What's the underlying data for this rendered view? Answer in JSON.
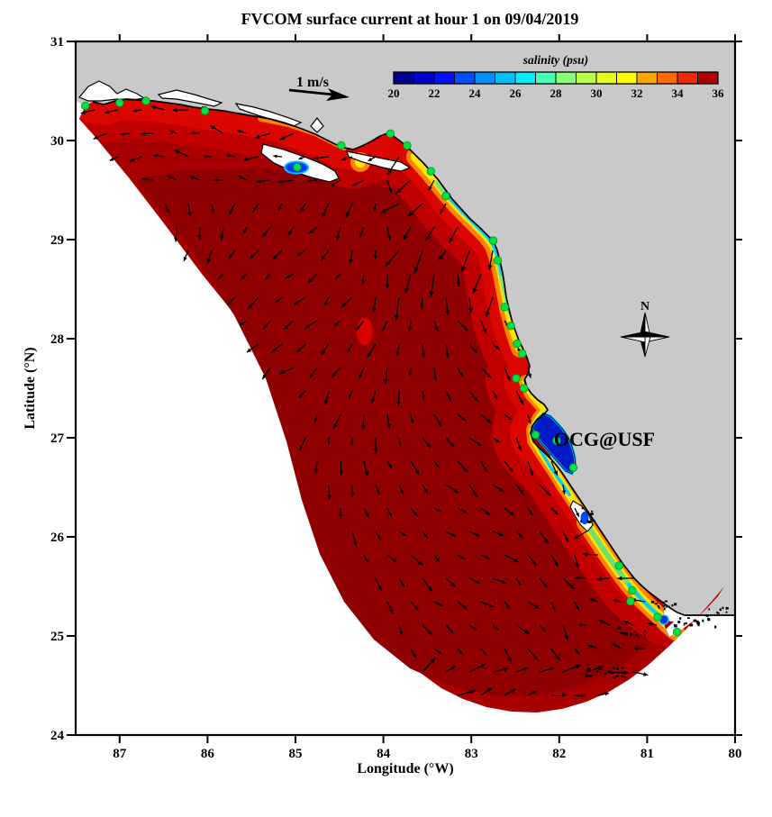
{
  "title": "FVCOM surface current at hour 1 on 09/04/2019",
  "axes": {
    "x_label": "Longitude (°W)",
    "y_label": "Latitude (°N)",
    "x_ticks": [
      87,
      86,
      85,
      84,
      83,
      82,
      81,
      80
    ],
    "y_ticks": [
      31,
      30,
      29,
      28,
      27,
      26,
      25,
      24
    ],
    "x_range_deg_w": [
      87.5,
      80
    ],
    "y_range_deg_n": [
      24,
      31
    ]
  },
  "colorbar": {
    "title": "salinity (psu)",
    "tick_labels": [
      "20",
      "22",
      "24",
      "26",
      "28",
      "30",
      "32",
      "34",
      "36"
    ],
    "range": [
      20,
      36
    ],
    "segments": 16,
    "colors": [
      "#000090",
      "#0000d0",
      "#0010ff",
      "#0050ff",
      "#0090ff",
      "#00c0ff",
      "#00ecff",
      "#48ffb8",
      "#88ff78",
      "#b8ff48",
      "#e4ff1c",
      "#ffff00",
      "#ffa500",
      "#ff6a00",
      "#f02800",
      "#b00000"
    ]
  },
  "scale_arrow": {
    "label": "1 m/s",
    "value_m_per_s": 1
  },
  "compass": {
    "label": "N"
  },
  "watermark": {
    "text": "OCG@USF",
    "color": "#ff0000"
  },
  "map": {
    "land_color": "#c9c9c9",
    "outside_domain_color": "#ffffff",
    "station_color": "#00e040",
    "vector_color": "#000000",
    "shelf_base_color": "#a80000",
    "shelf_dark_color": "#900000",
    "coastal_band_color": "#c00000",
    "coastal_band2_color": "#dc0600"
  },
  "chart_data": {
    "type": "map",
    "map_type": "surface current vector field over salinity contours",
    "title": "FVCOM surface current at hour 1 on 09/04/2019",
    "model": "FVCOM",
    "date": "09/04/2019",
    "forecast_hour": 1,
    "variable": "salinity (psu)",
    "colorbar_range": [
      20,
      36
    ],
    "colorbar_tick_values": [
      20,
      22,
      24,
      26,
      28,
      30,
      32,
      34,
      36
    ],
    "x_axis": {
      "label": "Longitude (°W)",
      "ticks": [
        87,
        86,
        85,
        84,
        83,
        82,
        81,
        80
      ],
      "range": [
        87.5,
        80
      ]
    },
    "y_axis": {
      "label": "Latitude (°N)",
      "ticks": [
        31,
        30,
        29,
        28,
        27,
        26,
        25,
        24
      ],
      "range": [
        24,
        31
      ]
    },
    "reference_vector_m_per_s": 1,
    "stations_lonlat": [
      [
        87.39,
        30.35
      ],
      [
        87.0,
        30.38
      ],
      [
        86.7,
        30.4
      ],
      [
        86.03,
        30.3
      ],
      [
        84.98,
        29.73
      ],
      [
        84.48,
        29.95
      ],
      [
        83.92,
        30.07
      ],
      [
        83.73,
        29.95
      ],
      [
        83.46,
        29.69
      ],
      [
        83.29,
        29.44
      ],
      [
        82.75,
        28.99
      ],
      [
        82.7,
        28.79
      ],
      [
        82.62,
        28.32
      ],
      [
        82.55,
        28.13
      ],
      [
        82.48,
        27.95
      ],
      [
        82.42,
        27.85
      ],
      [
        82.49,
        27.6
      ],
      [
        82.4,
        27.5
      ],
      [
        82.27,
        27.03
      ],
      [
        82.03,
        26.97
      ],
      [
        81.84,
        26.7
      ],
      [
        81.32,
        25.71
      ],
      [
        81.17,
        25.46
      ],
      [
        81.19,
        25.35
      ],
      [
        80.88,
        25.19
      ],
      [
        80.66,
        25.04
      ]
    ],
    "vector_field": {
      "grid_spacing_px": 26,
      "arrow_color": "#000000",
      "regions": [
        {
          "name": "panhandle",
          "angle_deg": 185
        },
        {
          "name": "big-bend",
          "angle_deg": -115
        },
        {
          "name": "mid-shelf",
          "angle_deg": -80
        },
        {
          "name": "southern-boundary",
          "angle_deg": 22
        },
        {
          "name": "south-coast",
          "angle_deg": 185
        }
      ]
    }
  }
}
